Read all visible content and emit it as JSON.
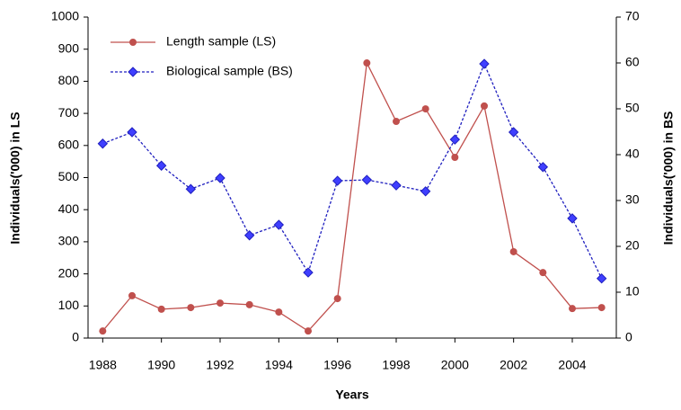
{
  "chart_data": {
    "type": "line",
    "x": [
      1988,
      1989,
      1990,
      1991,
      1992,
      1993,
      1994,
      1995,
      1996,
      1997,
      1998,
      1999,
      2000,
      2001,
      2002,
      2003,
      2004,
      2005
    ],
    "series": [
      {
        "name": "Length sample (LS)",
        "color": "#c0504d",
        "marker": "circle",
        "dash": false,
        "values": [
          22,
          132,
          90,
          95,
          109,
          104,
          81,
          22,
          123,
          857,
          675,
          714,
          563,
          723,
          269,
          204,
          92,
          95
        ]
      },
      {
        "name": "Biological sample (BS)",
        "color": "#1f1fbf",
        "marker": "diamond",
        "dash": true,
        "axis": "y2",
        "values": [
          42.4,
          44.9,
          37.6,
          32.5,
          34.9,
          22.4,
          24.7,
          14.3,
          34.3,
          34.5,
          33.3,
          32.0,
          43.3,
          59.8,
          44.9,
          37.3,
          26.1,
          13.0
        ]
      }
    ],
    "xlabel": "Years",
    "ylabel": "Individuals('000) in LS",
    "y2label": "Individuals('000) in BS",
    "xlim": [
      1987.5,
      2005.5
    ],
    "xticks": [
      1988,
      1990,
      1992,
      1994,
      1996,
      1998,
      2000,
      2002,
      2004
    ],
    "ylim": [
      0,
      1000
    ],
    "yticks": [
      0,
      100,
      200,
      300,
      400,
      500,
      600,
      700,
      800,
      900,
      1000
    ],
    "y2lim": [
      0,
      70
    ],
    "y2ticks": [
      0,
      10,
      20,
      30,
      40,
      50,
      60,
      70
    ],
    "grid": false,
    "legend": "upper left"
  }
}
